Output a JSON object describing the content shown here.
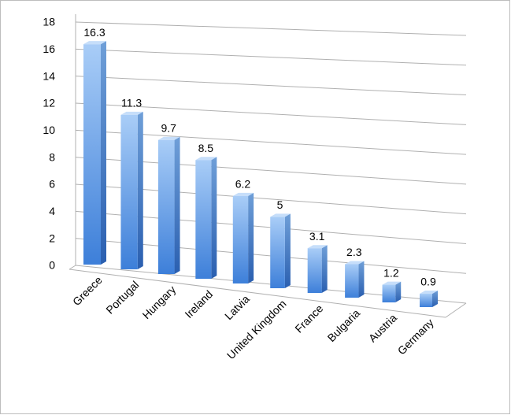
{
  "chart_data": {
    "type": "bar3d",
    "categories": [
      "Greece",
      "Portugal",
      "Hungary",
      "Ireland",
      "Latvia",
      "United Kingdom",
      "France",
      "Bulgaria",
      "Austria",
      "Germany"
    ],
    "values": [
      16.3,
      11.3,
      9.7,
      8.5,
      6.2,
      5,
      3.1,
      2.3,
      1.2,
      0.9
    ],
    "color": "#6fa6e8",
    "ylim": [
      0,
      18
    ],
    "yticks": [
      0,
      2,
      4,
      6,
      8,
      10,
      12,
      14,
      16,
      18
    ],
    "grid": true
  }
}
